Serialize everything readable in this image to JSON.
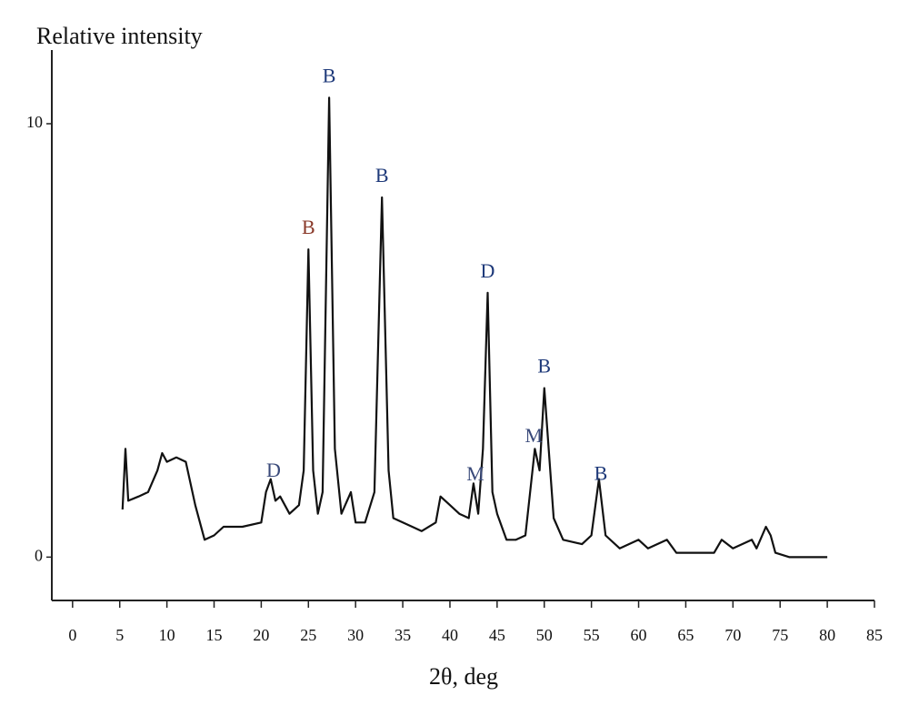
{
  "chart_data": {
    "type": "line",
    "y_label": "Relative intensity",
    "x_label": "2θ, deg",
    "xlim": [
      -2.2,
      85
    ],
    "ylim": [
      -1,
      11.7
    ],
    "xticks": [
      0,
      5,
      10,
      15,
      20,
      25,
      30,
      35,
      40,
      45,
      50,
      55,
      60,
      65,
      70,
      75,
      80,
      85
    ],
    "yticks": [
      0,
      10
    ],
    "color": "#111111",
    "x": [
      5.3,
      5.6,
      5.9,
      7,
      8,
      9,
      9.5,
      10,
      11,
      12,
      13,
      14,
      15,
      16,
      18,
      20,
      20.5,
      21,
      21.5,
      22,
      23,
      24,
      24.5,
      25,
      25.5,
      26,
      26.5,
      27.2,
      27.8,
      28.5,
      29.5,
      30,
      31,
      32,
      32.8,
      33.5,
      34,
      35,
      36,
      37,
      38.5,
      39,
      40,
      41,
      42,
      42.5,
      43,
      43.5,
      44,
      44.5,
      45,
      46,
      47,
      48,
      49,
      49.5,
      50,
      51,
      52,
      54,
      55,
      55.8,
      56.5,
      58,
      60,
      61,
      63,
      64,
      66,
      68,
      68.8,
      70,
      72,
      72.5,
      73.5,
      74,
      74.5,
      76,
      80
    ],
    "y": [
      1.1,
      2.5,
      1.3,
      1.4,
      1.5,
      2.0,
      2.4,
      2.2,
      2.3,
      2.2,
      1.2,
      0.4,
      0.5,
      0.7,
      0.7,
      0.8,
      1.5,
      1.8,
      1.3,
      1.4,
      1.0,
      1.2,
      2.0,
      7.1,
      2.0,
      1.0,
      1.5,
      10.6,
      2.5,
      1.0,
      1.5,
      0.8,
      0.8,
      1.5,
      8.3,
      2.0,
      0.9,
      0.8,
      0.7,
      0.6,
      0.8,
      1.4,
      1.2,
      1.0,
      0.9,
      1.7,
      1.0,
      2.5,
      6.1,
      1.5,
      1.0,
      0.4,
      0.4,
      0.5,
      2.5,
      2.0,
      3.9,
      0.9,
      0.4,
      0.3,
      0.5,
      1.8,
      0.5,
      0.2,
      0.4,
      0.2,
      0.4,
      0.1,
      0.1,
      0.1,
      0.4,
      0.2,
      0.4,
      0.2,
      0.7,
      0.5,
      0.1,
      0.0,
      0.0
    ],
    "annotations": [
      {
        "text": "D",
        "x": 21.3,
        "color": "#3a4a7a"
      },
      {
        "text": "B",
        "x": 25,
        "color": "#8a3a2a"
      },
      {
        "text": "B",
        "x": 27.2,
        "color": "#1f3a7a"
      },
      {
        "text": "B",
        "x": 32.8,
        "color": "#1f3a7a"
      },
      {
        "text": "M",
        "x": 42.7,
        "color": "#3a4a7a"
      },
      {
        "text": "D",
        "x": 44,
        "color": "#1f3a7a"
      },
      {
        "text": "M",
        "x": 48.9,
        "color": "#3a4a7a"
      },
      {
        "text": "B",
        "x": 50,
        "color": "#1f3a7a"
      },
      {
        "text": "B",
        "x": 56,
        "color": "#1f3a7a"
      }
    ]
  }
}
